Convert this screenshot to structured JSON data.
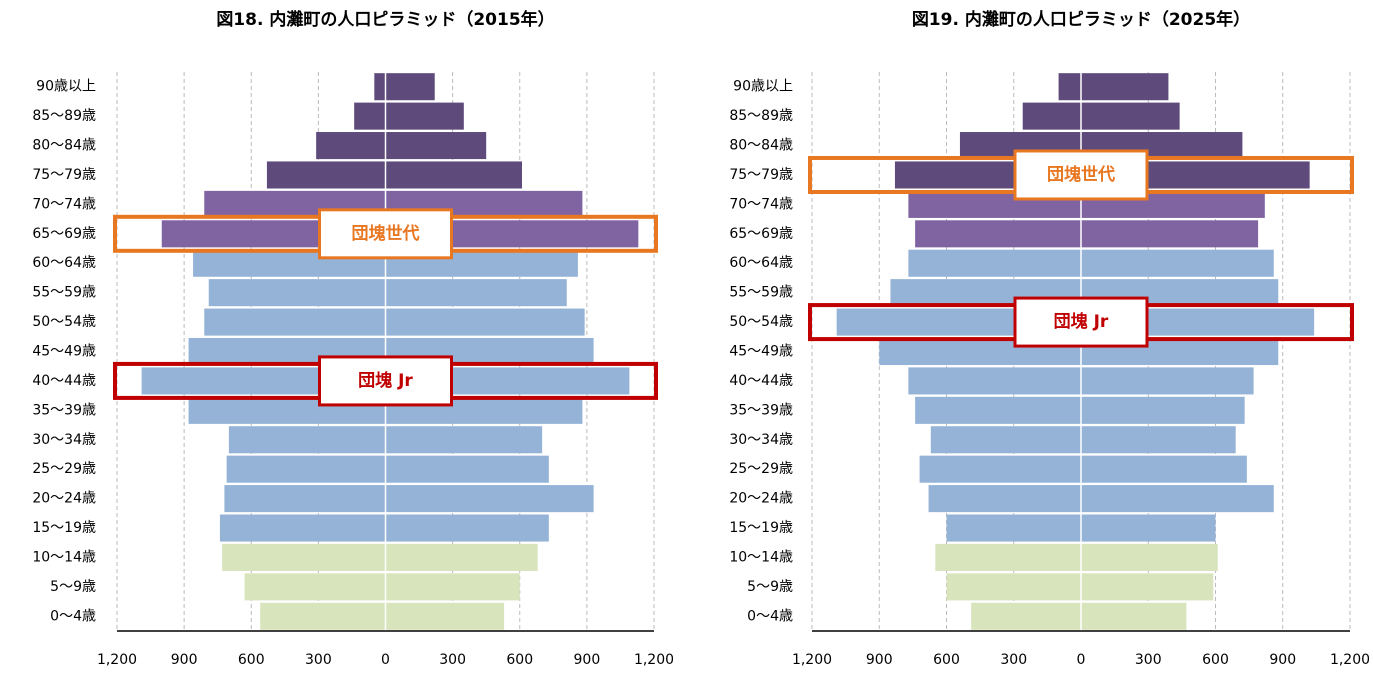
{
  "chart_data": [
    {
      "type": "pyramid",
      "title": "図18.  内灘町の人口ピラミッド（2015年）",
      "categories": [
        "90歳以上",
        "85～89歳",
        "80～84歳",
        "75～79歳",
        "70～74歳",
        "65～69歳",
        "60～64歳",
        "55～59歳",
        "50～54歳",
        "45～49歳",
        "40～44歳",
        "35～39歳",
        "30～34歳",
        "25～29歳",
        "20～24歳",
        "15～19歳",
        "10～14歳",
        "5～9歳",
        "0～4歳"
      ],
      "bar_colors": [
        "#5e4b7c",
        "#5e4b7c",
        "#5e4b7c",
        "#5e4b7c",
        "#8064a2",
        "#8064a2",
        "#95b3d7",
        "#95b3d7",
        "#95b3d7",
        "#95b3d7",
        "#95b3d7",
        "#95b3d7",
        "#95b3d7",
        "#95b3d7",
        "#95b3d7",
        "#95b3d7",
        "#d7e4bc",
        "#d7e4bc",
        "#d7e4bc"
      ],
      "series": [
        {
          "values": [
            -50,
            -140,
            -310,
            -530,
            -810,
            -1000,
            -860,
            -790,
            -810,
            -880,
            -1090,
            -880,
            -700,
            -710,
            -720,
            -740,
            -730,
            -630,
            -560
          ]
        },
        {
          "values": [
            220,
            350,
            450,
            610,
            880,
            1130,
            860,
            810,
            890,
            930,
            1090,
            880,
            700,
            730,
            930,
            730,
            680,
            600,
            530
          ]
        }
      ],
      "xlim": [
        -1200,
        1200
      ],
      "xticks": [
        {
          "value": -1200,
          "label": "1,200"
        },
        {
          "value": -900,
          "label": "900"
        },
        {
          "value": -600,
          "label": "600"
        },
        {
          "value": -300,
          "label": "300"
        },
        0,
        300,
        600,
        900,
        {
          "value": 1200,
          "label": "1,200"
        }
      ],
      "grid": true,
      "annotations": [
        {
          "text": "団塊世代",
          "category": "65～69歳",
          "color": "#e87722"
        },
        {
          "text": "団塊 Jr",
          "category": "40～44歳",
          "color": "#c00000"
        }
      ]
    },
    {
      "type": "pyramid",
      "title": "図19.  内灘町の人口ピラミッド（2025年）",
      "categories": [
        "90歳以上",
        "85～89歳",
        "80～84歳",
        "75～79歳",
        "70～74歳",
        "65～69歳",
        "60～64歳",
        "55～59歳",
        "50～54歳",
        "45～49歳",
        "40～44歳",
        "35～39歳",
        "30～34歳",
        "25～29歳",
        "20～24歳",
        "15～19歳",
        "10～14歳",
        "5～9歳",
        "0～4歳"
      ],
      "bar_colors": [
        "#5e4b7c",
        "#5e4b7c",
        "#5e4b7c",
        "#5e4b7c",
        "#8064a2",
        "#8064a2",
        "#95b3d7",
        "#95b3d7",
        "#95b3d7",
        "#95b3d7",
        "#95b3d7",
        "#95b3d7",
        "#95b3d7",
        "#95b3d7",
        "#95b3d7",
        "#95b3d7",
        "#d7e4bc",
        "#d7e4bc",
        "#d7e4bc"
      ],
      "series": [
        {
          "values": [
            -100,
            -260,
            -540,
            -830,
            -770,
            -740,
            -770,
            -850,
            -1090,
            -900,
            -770,
            -740,
            -670,
            -720,
            -680,
            -600,
            -650,
            -600,
            -490
          ]
        },
        {
          "values": [
            390,
            440,
            720,
            1020,
            820,
            790,
            860,
            880,
            1040,
            880,
            770,
            730,
            690,
            740,
            860,
            600,
            610,
            590,
            470
          ]
        }
      ],
      "xlim": [
        -1200,
        1200
      ],
      "xticks": [
        {
          "value": -1200,
          "label": "1,200"
        },
        {
          "value": -900,
          "label": "900"
        },
        {
          "value": -600,
          "label": "600"
        },
        {
          "value": -300,
          "label": "300"
        },
        0,
        300,
        600,
        900,
        {
          "value": 1200,
          "label": "1,200"
        }
      ],
      "grid": true,
      "annotations": [
        {
          "text": "団塊世代",
          "category": "75～79歳",
          "color": "#e87722"
        },
        {
          "text": "団塊 Jr",
          "category": "50～54歳",
          "color": "#c00000"
        }
      ]
    }
  ]
}
